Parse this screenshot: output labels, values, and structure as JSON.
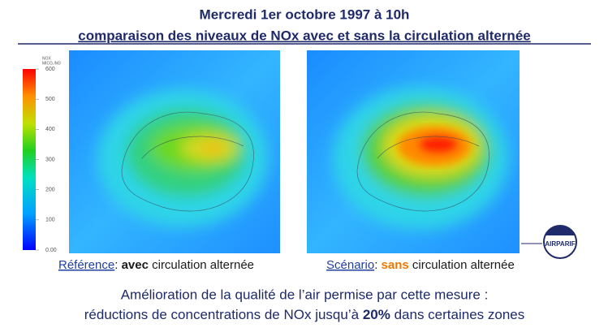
{
  "header": {
    "title": "Mercredi 1er octobre 1997 à 10h",
    "subtitle": "comparaison des niveaux de NOx avec et sans la circulation alternée"
  },
  "colorbar": {
    "title": "NOX",
    "unit": "MICG./M3",
    "lim": [
      0,
      600
    ],
    "ticks": [
      {
        "value": 0,
        "label": "0.00"
      },
      100,
      200,
      300,
      400,
      500,
      600
    ]
  },
  "maps": [
    {
      "caption_name": "Référence",
      "caption_sep": ":",
      "caption_key": "avec",
      "caption_rest": "circulation alternée"
    },
    {
      "caption_name": "Scénario",
      "caption_sep": ":",
      "caption_key": "sans",
      "caption_rest": "circulation alternée"
    }
  ],
  "footer": {
    "line1": "Amélioration de la qualité de l’air permise par cette mesure :",
    "line2_start": "réductions de concentrations de NOx jusqu’à",
    "line2_key": "20%",
    "line2_end": "dans certaines zones"
  },
  "logo": {
    "text": "AIRPARIF"
  }
}
